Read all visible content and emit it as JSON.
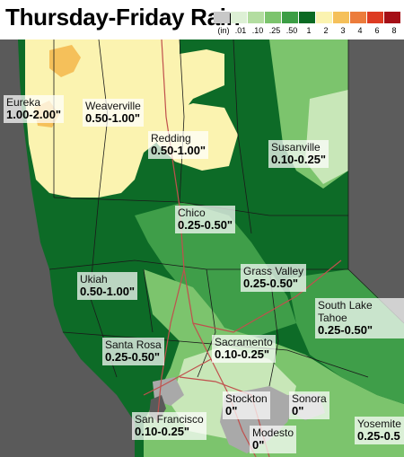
{
  "title": "Thursday-Friday Rain",
  "legend": {
    "unit": "(in)",
    "ticks": [
      ".01",
      ".10",
      ".25",
      ".50",
      "1",
      "2",
      "3",
      "4",
      "6",
      "8"
    ],
    "colors": [
      "#c8c8c8",
      "#ddf0d5",
      "#b3dda0",
      "#7cc46d",
      "#3c9e45",
      "#0b6a23",
      "#fbf3b0",
      "#f5c05a",
      "#ec7c3b",
      "#dd3b22",
      "#a50f16"
    ]
  },
  "colors": {
    "ocean": "#5a5a5a",
    "nevada": "#5a5a5a",
    "dark_green": "#0d6b27",
    "mid_green": "#3f9e49",
    "light_green": "#7cc46d",
    "pale_green": "#c8e7b8",
    "yellow": "#fbf3b0",
    "orange": "#f5c05a",
    "gray": "#a9a9a9",
    "roads": "#c0504d"
  },
  "cities": [
    {
      "name": "Eureka",
      "value": "1.00-2.00\""
    },
    {
      "name": "Weaverville",
      "value": "0.50-1.00\""
    },
    {
      "name": "Redding",
      "value": "0.50-1.00\""
    },
    {
      "name": "Susanville",
      "value": "0.10-0.25\""
    },
    {
      "name": "Chico",
      "value": "0.25-0.50\""
    },
    {
      "name": "Ukiah",
      "value": "0.50-1.00\""
    },
    {
      "name": "Grass Valley",
      "value": "0.25-0.50\""
    },
    {
      "name": "South Lake Tahoe",
      "value": "0.25-0.50\""
    },
    {
      "name": "Santa Rosa",
      "value": "0.25-0.50\""
    },
    {
      "name": "Sacramento",
      "value": "0.10-0.25\""
    },
    {
      "name": "Stockton",
      "value": "0\""
    },
    {
      "name": "Sonora",
      "value": "0\""
    },
    {
      "name": "San Francisco",
      "value": "0.10-0.25\""
    },
    {
      "name": "Modesto",
      "value": "0\""
    },
    {
      "name": "Yosemite",
      "value": "0.25-0.5"
    }
  ]
}
